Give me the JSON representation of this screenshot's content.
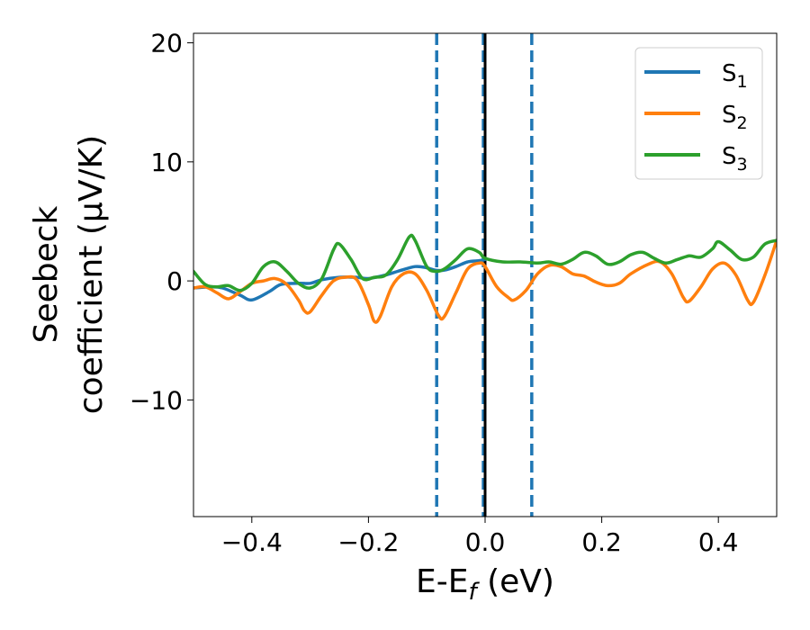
{
  "chart_data": {
    "type": "line",
    "title": "",
    "xlabel": {
      "main": "E-E",
      "sub": "f",
      "tail": " (eV)"
    },
    "ylabel": {
      "line1": "Seebeck",
      "line2": "coefficient  (μV/K)"
    },
    "xlim": [
      -0.5,
      0.5
    ],
    "ylim": [
      -19.8,
      20.8
    ],
    "xticks": [
      -0.4,
      -0.2,
      0.0,
      0.2,
      0.4
    ],
    "xtick_labels": [
      "−0.4",
      "−0.2",
      "0.0",
      "0.2",
      "0.4"
    ],
    "yticks": [
      -10,
      0,
      10,
      20
    ],
    "ytick_labels": [
      "−10",
      "0",
      "10",
      "20"
    ],
    "grid": false,
    "legend": {
      "placement": "top-right"
    },
    "vlines": [
      {
        "x": -0.083,
        "style": "dashed",
        "color": "#1f77b4"
      },
      {
        "x": -0.003,
        "style": "dashed",
        "color": "#1f77b4"
      },
      {
        "x": 0.08,
        "style": "dashed",
        "color": "#1f77b4"
      },
      {
        "x": 0.0,
        "style": "solid",
        "color": "#000000"
      }
    ],
    "series": [
      {
        "name": "S",
        "sub": "1",
        "color": "#1f77b4",
        "points": [
          [
            -0.5,
            -0.6
          ],
          [
            -0.47,
            -0.5
          ],
          [
            -0.45,
            -0.6
          ],
          [
            -0.42,
            -1.2
          ],
          [
            -0.4,
            -1.6
          ],
          [
            -0.37,
            -0.9
          ],
          [
            -0.35,
            -0.3
          ],
          [
            -0.32,
            -0.2
          ],
          [
            -0.3,
            -0.2
          ],
          [
            -0.28,
            0.1
          ],
          [
            -0.25,
            0.3
          ],
          [
            -0.22,
            0.3
          ],
          [
            -0.2,
            0.2
          ],
          [
            -0.17,
            0.5
          ],
          [
            -0.15,
            0.8
          ],
          [
            -0.12,
            1.2
          ],
          [
            -0.1,
            1.1
          ],
          [
            -0.085,
            0.9
          ],
          [
            -0.07,
            0.9
          ],
          [
            -0.05,
            1.2
          ],
          [
            -0.03,
            1.6
          ],
          [
            -0.01,
            1.7
          ],
          [
            0.0,
            1.8
          ]
        ]
      },
      {
        "name": "S",
        "sub": "2",
        "color": "#ff7f0e",
        "points": [
          [
            -0.5,
            -0.6
          ],
          [
            -0.48,
            -0.5
          ],
          [
            -0.46,
            -1.0
          ],
          [
            -0.44,
            -1.5
          ],
          [
            -0.42,
            -0.9
          ],
          [
            -0.4,
            -0.2
          ],
          [
            -0.38,
            0.0
          ],
          [
            -0.36,
            0.2
          ],
          [
            -0.34,
            -0.3
          ],
          [
            -0.32,
            -1.6
          ],
          [
            -0.31,
            -2.5
          ],
          [
            -0.3,
            -2.6
          ],
          [
            -0.28,
            -1.2
          ],
          [
            -0.26,
            0.0
          ],
          [
            -0.24,
            0.3
          ],
          [
            -0.22,
            0.1
          ],
          [
            -0.2,
            -2.0
          ],
          [
            -0.19,
            -3.4
          ],
          [
            -0.18,
            -3.0
          ],
          [
            -0.16,
            -0.5
          ],
          [
            -0.14,
            0.6
          ],
          [
            -0.12,
            0.6
          ],
          [
            -0.1,
            -0.8
          ],
          [
            -0.08,
            -2.9
          ],
          [
            -0.07,
            -3.0
          ],
          [
            -0.05,
            -1.0
          ],
          [
            -0.03,
            1.0
          ],
          [
            -0.01,
            1.5
          ],
          [
            0.0,
            1.2
          ],
          [
            0.02,
            -0.5
          ],
          [
            0.04,
            -1.4
          ],
          [
            0.05,
            -1.6
          ],
          [
            0.07,
            -0.8
          ],
          [
            0.09,
            0.6
          ],
          [
            0.11,
            1.3
          ],
          [
            0.13,
            1.2
          ],
          [
            0.15,
            0.6
          ],
          [
            0.17,
            0.4
          ],
          [
            0.19,
            -0.1
          ],
          [
            0.21,
            -0.4
          ],
          [
            0.23,
            -0.2
          ],
          [
            0.25,
            0.6
          ],
          [
            0.28,
            1.4
          ],
          [
            0.3,
            1.6
          ],
          [
            0.32,
            0.6
          ],
          [
            0.34,
            -1.4
          ],
          [
            0.35,
            -1.7
          ],
          [
            0.37,
            -0.5
          ],
          [
            0.39,
            1.0
          ],
          [
            0.41,
            1.5
          ],
          [
            0.43,
            0.5
          ],
          [
            0.45,
            -1.6
          ],
          [
            0.46,
            -1.8
          ],
          [
            0.48,
            0.5
          ],
          [
            0.5,
            3.4
          ]
        ]
      },
      {
        "name": "S",
        "sub": "3",
        "color": "#2ca02c",
        "points": [
          [
            -0.5,
            0.8
          ],
          [
            -0.48,
            -0.3
          ],
          [
            -0.46,
            -0.5
          ],
          [
            -0.44,
            -0.4
          ],
          [
            -0.42,
            -0.8
          ],
          [
            -0.4,
            -0.2
          ],
          [
            -0.38,
            1.2
          ],
          [
            -0.36,
            1.6
          ],
          [
            -0.34,
            0.8
          ],
          [
            -0.32,
            -0.2
          ],
          [
            -0.3,
            -0.6
          ],
          [
            -0.28,
            0.2
          ],
          [
            -0.26,
            2.6
          ],
          [
            -0.25,
            3.1
          ],
          [
            -0.23,
            1.8
          ],
          [
            -0.21,
            0.2
          ],
          [
            -0.19,
            0.3
          ],
          [
            -0.17,
            0.5
          ],
          [
            -0.15,
            1.8
          ],
          [
            -0.13,
            3.7
          ],
          [
            -0.12,
            3.4
          ],
          [
            -0.1,
            1.2
          ],
          [
            -0.085,
            0.8
          ],
          [
            -0.07,
            1.0
          ],
          [
            -0.05,
            1.8
          ],
          [
            -0.03,
            2.7
          ],
          [
            -0.01,
            2.4
          ],
          [
            0.0,
            1.9
          ],
          [
            0.03,
            1.6
          ],
          [
            0.06,
            1.6
          ],
          [
            0.09,
            1.5
          ],
          [
            0.11,
            1.6
          ],
          [
            0.13,
            1.4
          ],
          [
            0.15,
            1.8
          ],
          [
            0.17,
            2.4
          ],
          [
            0.19,
            2.1
          ],
          [
            0.21,
            1.4
          ],
          [
            0.23,
            1.6
          ],
          [
            0.25,
            2.2
          ],
          [
            0.27,
            2.4
          ],
          [
            0.29,
            1.9
          ],
          [
            0.31,
            1.5
          ],
          [
            0.33,
            1.8
          ],
          [
            0.35,
            2.1
          ],
          [
            0.37,
            2.0
          ],
          [
            0.39,
            2.7
          ],
          [
            0.4,
            3.3
          ],
          [
            0.42,
            2.6
          ],
          [
            0.44,
            1.8
          ],
          [
            0.46,
            2.0
          ],
          [
            0.48,
            3.1
          ],
          [
            0.5,
            3.4
          ]
        ]
      }
    ]
  }
}
